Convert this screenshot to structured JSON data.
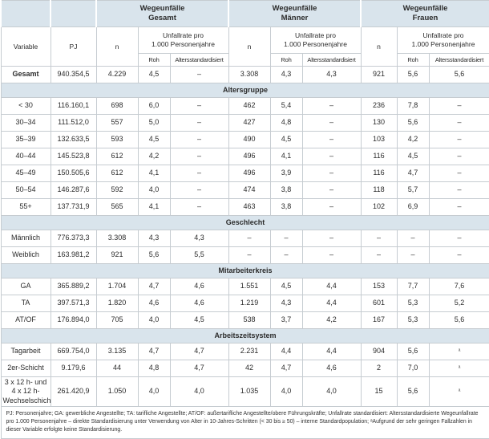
{
  "table": {
    "groups": [
      {
        "label": "Wegeunfälle\nGesamt"
      },
      {
        "label": "Wegeunfälle\nMänner"
      },
      {
        "label": "Wegeunfälle\nFrauen"
      }
    ],
    "col_headers": {
      "variable": "Variable",
      "pj": "PJ",
      "n": "n",
      "rate": "Unfallrate pro\n1.000 Personenjahre",
      "roh": "Roh",
      "std": "Altersstandardisiert"
    },
    "sections": [
      {
        "title": null,
        "rows": [
          {
            "label": "Gesamt",
            "bold": true,
            "values": [
              "940.354,5",
              "4.229",
              "4,5",
              "–",
              "3.308",
              "4,3",
              "4,3",
              "921",
              "5,6",
              "5,6"
            ]
          }
        ]
      },
      {
        "title": "Altersgruppe",
        "rows": [
          {
            "label": "< 30",
            "bold": false,
            "values": [
              "116.160,1",
              "698",
              "6,0",
              "–",
              "462",
              "5,4",
              "–",
              "236",
              "7,8",
              "–"
            ]
          },
          {
            "label": "30–34",
            "bold": false,
            "values": [
              "111.512,0",
              "557",
              "5,0",
              "–",
              "427",
              "4,8",
              "–",
              "130",
              "5,6",
              "–"
            ]
          },
          {
            "label": "35–39",
            "bold": false,
            "values": [
              "132.633,5",
              "593",
              "4,5",
              "–",
              "490",
              "4,5",
              "–",
              "103",
              "4,2",
              "–"
            ]
          },
          {
            "label": "40–44",
            "bold": false,
            "values": [
              "145.523,8",
              "612",
              "4,2",
              "–",
              "496",
              "4,1",
              "–",
              "116",
              "4,5",
              "–"
            ]
          },
          {
            "label": "45–49",
            "bold": false,
            "values": [
              "150.505,6",
              "612",
              "4,1",
              "–",
              "496",
              "3,9",
              "–",
              "116",
              "4,7",
              "–"
            ]
          },
          {
            "label": "50–54",
            "bold": false,
            "values": [
              "146.287,6",
              "592",
              "4,0",
              "–",
              "474",
              "3,8",
              "–",
              "118",
              "5,7",
              "–"
            ]
          },
          {
            "label": "55+",
            "bold": false,
            "values": [
              "137.731,9",
              "565",
              "4,1",
              "–",
              "463",
              "3,8",
              "–",
              "102",
              "6,9",
              "–"
            ]
          }
        ]
      },
      {
        "title": "Geschlecht",
        "rows": [
          {
            "label": "Männlich",
            "bold": false,
            "values": [
              "776.373,3",
              "3.308",
              "4,3",
              "4,3",
              "–",
              "–",
              "–",
              "–",
              "–",
              "–"
            ]
          },
          {
            "label": "Weiblich",
            "bold": false,
            "values": [
              "163.981,2",
              "921",
              "5,6",
              "5,5",
              "–",
              "–",
              "–",
              "–",
              "–",
              "–"
            ]
          }
        ]
      },
      {
        "title": "Mitarbeiterkreis",
        "rows": [
          {
            "label": "GA",
            "bold": false,
            "values": [
              "365.889,2",
              "1.704",
              "4,7",
              "4,6",
              "1.551",
              "4,5",
              "4,4",
              "153",
              "7,7",
              "7,6"
            ]
          },
          {
            "label": "TA",
            "bold": false,
            "values": [
              "397.571,3",
              "1.820",
              "4,6",
              "4,6",
              "1.219",
              "4,3",
              "4,4",
              "601",
              "5,3",
              "5,2"
            ]
          },
          {
            "label": "AT/OF",
            "bold": false,
            "values": [
              "176.894,0",
              "705",
              "4,0",
              "4,5",
              "538",
              "3,7",
              "4,2",
              "167",
              "5,3",
              "5,6"
            ]
          }
        ]
      },
      {
        "title": "Arbeitszeitsystem",
        "rows": [
          {
            "label": "Tagarbeit",
            "bold": false,
            "values": [
              "669.754,0",
              "3.135",
              "4,7",
              "4,7",
              "2.231",
              "4,4",
              "4,4",
              "904",
              "5,6",
              "ᵃ"
            ]
          },
          {
            "label": "2er-Schicht",
            "bold": false,
            "values": [
              "9.179,6",
              "44",
              "4,8",
              "4,7",
              "42",
              "4,7",
              "4,6",
              "2",
              "7,0",
              "ᵃ"
            ]
          },
          {
            "label": "3 x 12 h- und\n4 x 12 h-\nWechselschicht",
            "bold": false,
            "values": [
              "261.420,9",
              "1.050",
              "4,0",
              "4,0",
              "1.035",
              "4,0",
              "4,0",
              "15",
              "5,6",
              "ᵃ"
            ]
          }
        ]
      }
    ],
    "footnote": "PJ: Personenjahre; GA: gewerbliche Angestellte; TA: tarifliche Angestellte; AT/OF: außertarifliche Angestellte/obere Führungskräfte; Unfallrate standardisiert: Altersstandardisierte Wegeunfallrate pro 1.000 Personenjahre – direkte Standardisierung unter Verwendung von Alter in 10-Jahres-Schritten (< 30 bis ≥ 50) – interne Standardpopulation; ᵃAufgrund der sehr geringen Fallzahlen in dieser Variable erfolgte keine Standardisierung."
  },
  "colors": {
    "header_bg": "#d9e4ec",
    "border": "#c6ccd1",
    "text": "#2b2b2b"
  }
}
